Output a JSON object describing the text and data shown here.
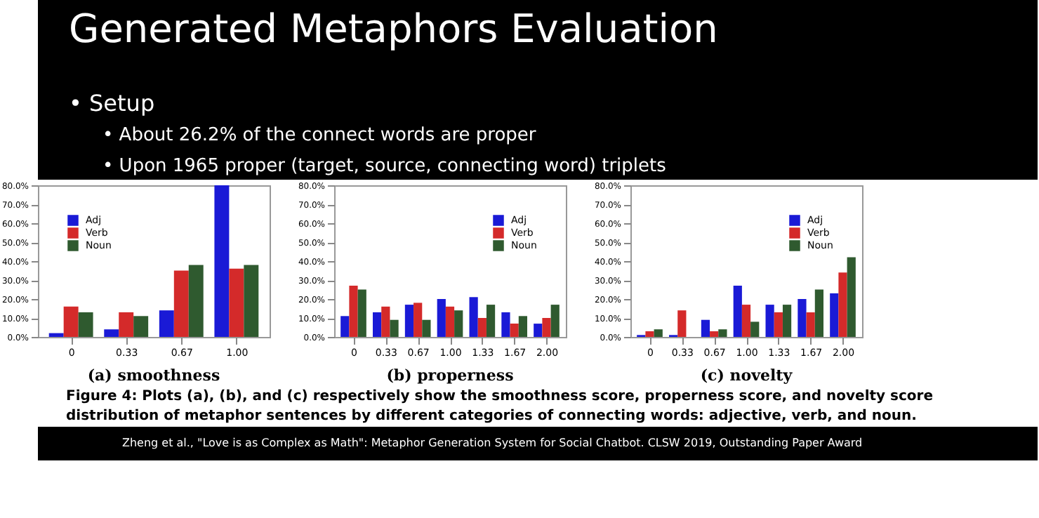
{
  "chart_data": [
    {
      "type": "other",
      "title": "Generated Metaphors Evaluation",
      "annotations": [
        "• Setup",
        "• About 26.2% of the connect words are proper",
        "• Upon 1965 proper (target, source, connecting word) triplets"
      ]
    },
    {
      "type": "bar",
      "title": "(a) smoothness",
      "categories": [
        "0",
        "0.33",
        "0.67",
        "1.00"
      ],
      "series": [
        {
          "name": "Adj",
          "color": "#1a1ad6",
          "values": [
            2,
            4,
            14,
            80
          ]
        },
        {
          "name": "Verb",
          "color": "#d42a2a",
          "values": [
            16,
            13,
            35,
            36
          ]
        },
        {
          "name": "Noun",
          "color": "#2f5a2f",
          "values": [
            13,
            11,
            38,
            38
          ]
        }
      ],
      "ylim": [
        0,
        80
      ],
      "yticks": [
        {
          "value": 0,
          "label": "0.0%"
        },
        {
          "value": 10,
          "label": "10.0%"
        },
        {
          "value": 20,
          "label": "20.0%"
        },
        {
          "value": 30,
          "label": "30.0%"
        },
        {
          "value": 40,
          "label": "40.0%"
        },
        {
          "value": 50,
          "label": "50.0%"
        },
        {
          "value": 60,
          "label": "60.0%"
        },
        {
          "value": 70,
          "label": "70.0%"
        },
        {
          "value": 80,
          "label": "80.0%"
        }
      ],
      "legend": "top left",
      "grid": false
    },
    {
      "type": "bar",
      "title": "(b) properness",
      "categories": [
        "0",
        "0.33",
        "0.67",
        "1.00",
        "1.33",
        "1.67",
        "2.00"
      ],
      "series": [
        {
          "name": "Adj",
          "color": "#1a1ad6",
          "values": [
            11,
            13,
            17,
            20,
            21,
            13,
            7
          ]
        },
        {
          "name": "Verb",
          "color": "#d42a2a",
          "values": [
            27,
            16,
            18,
            16,
            10,
            7,
            10
          ]
        },
        {
          "name": "Noun",
          "color": "#2f5a2f",
          "values": [
            25,
            9,
            9,
            14,
            17,
            11,
            17
          ]
        }
      ],
      "ylim": [
        0,
        80
      ],
      "yticks": [
        {
          "value": 0,
          "label": "0.0%"
        },
        {
          "value": 10,
          "label": "10.0%"
        },
        {
          "value": 20,
          "label": "20.0%"
        },
        {
          "value": 30,
          "label": "30.0%"
        },
        {
          "value": 40,
          "label": "40.0%"
        },
        {
          "value": 50,
          "label": "50.0%"
        },
        {
          "value": 60,
          "label": "60.0%"
        },
        {
          "value": 70,
          "label": "70.0%"
        },
        {
          "value": 80,
          "label": "80.0%"
        }
      ],
      "legend": "top right",
      "grid": false
    },
    {
      "type": "bar",
      "title": "(c) novelty",
      "categories": [
        "0",
        "0.33",
        "0.67",
        "1.00",
        "1.33",
        "1.67",
        "2.00"
      ],
      "series": [
        {
          "name": "Adj",
          "color": "#1a1ad6",
          "values": [
            1,
            1,
            9,
            27,
            17,
            20,
            23
          ]
        },
        {
          "name": "Verb",
          "color": "#d42a2a",
          "values": [
            3,
            14,
            3,
            17,
            13,
            13,
            34
          ]
        },
        {
          "name": "Noun",
          "color": "#2f5a2f",
          "values": [
            4,
            0,
            4,
            8,
            17,
            25,
            42
          ]
        }
      ],
      "ylim": [
        0,
        80
      ],
      "yticks": [
        {
          "value": 0,
          "label": "0.0%"
        },
        {
          "value": 10,
          "label": "10.0%"
        },
        {
          "value": 20,
          "label": "20.0%"
        },
        {
          "value": 30,
          "label": "30.0%"
        },
        {
          "value": 40,
          "label": "40.0%"
        },
        {
          "value": 50,
          "label": "50.0%"
        },
        {
          "value": 60,
          "label": "60.0%"
        },
        {
          "value": 70,
          "label": "70.0%"
        },
        {
          "value": 80,
          "label": "80.0%"
        }
      ],
      "legend": "top right",
      "grid": false
    },
    {
      "type": "other",
      "annotations": [
        "Figure 4: Plots (a), (b), and (c) respectively show the smoothness score, properness score, and novelty score distribution of metaphor sentences by different categories of connecting words: adjective, verb, and noun.",
        "Zheng et al., \"Love is as Complex as Math\": Metaphor Generation System for Social Chatbot. CLSW 2019, Outstanding Paper Award"
      ]
    }
  ]
}
